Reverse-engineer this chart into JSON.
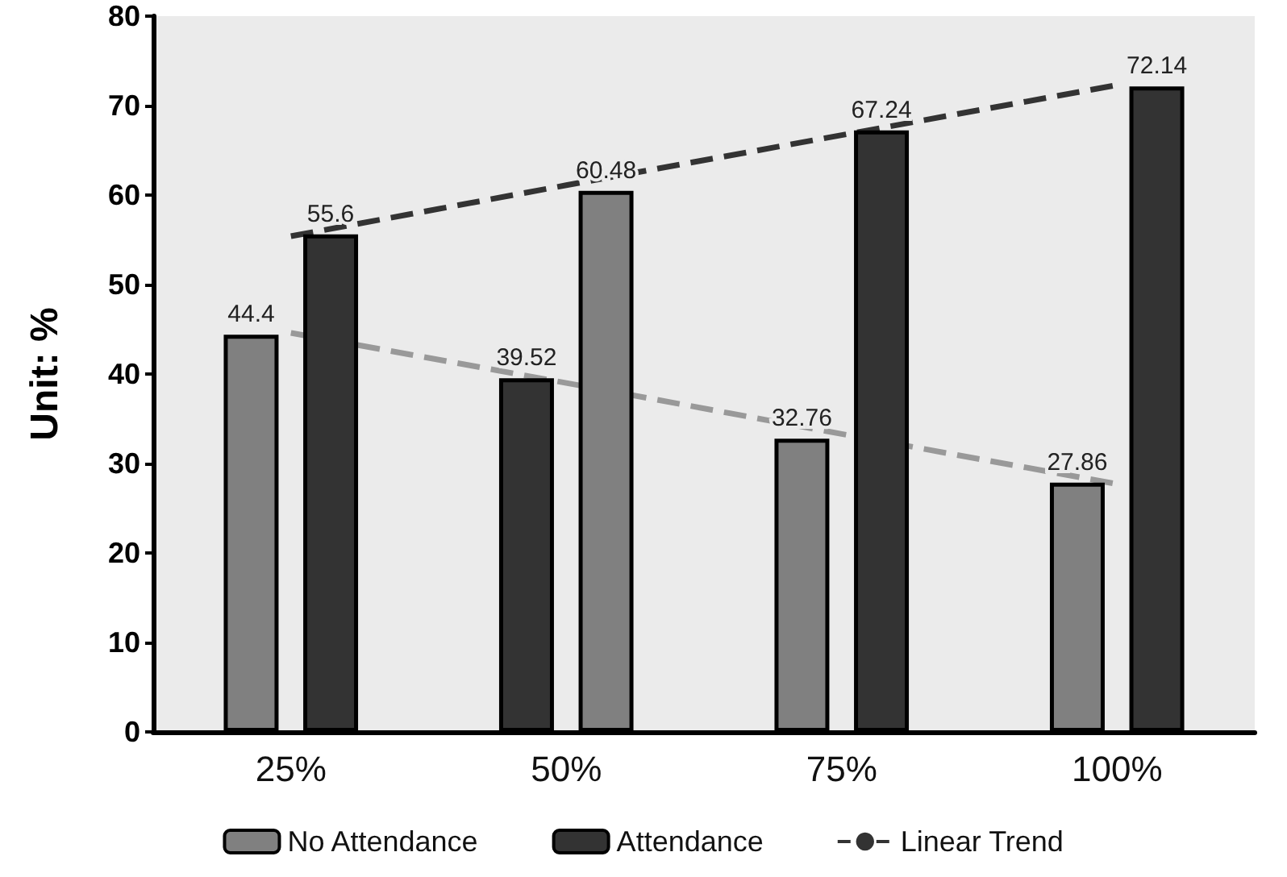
{
  "chart_data": {
    "type": "bar",
    "ylabel": "Unit: %",
    "categories": [
      "25%",
      "50%",
      "75%",
      "100%"
    ],
    "series": [
      {
        "name": "No Attendance",
        "color": "#808080",
        "colors": [
          "#808080",
          "#333333",
          "#808080",
          "#808080"
        ],
        "values": [
          44.4,
          39.52,
          32.76,
          27.86
        ],
        "value_labels": [
          "44.4",
          "39.52",
          "32.76",
          "27.86"
        ]
      },
      {
        "name": "Attendance",
        "color": "#333333",
        "colors": [
          "#333333",
          "#808080",
          "#333333",
          "#333333"
        ],
        "values": [
          55.6,
          60.48,
          67.24,
          72.14
        ],
        "value_labels": [
          "55.6",
          "60.48",
          "67.24",
          "72.14"
        ]
      },
      {
        "name": "Linear Trend",
        "type": "line",
        "color": "#333333",
        "line_style": "dashed",
        "marker": "none",
        "values": [
          55.4,
          61.1,
          66.7,
          72.3
        ]
      },
      {
        "type": "line",
        "color": "#999999",
        "line_style": "dashed",
        "marker": "none",
        "values": [
          44.6,
          39.0,
          33.3,
          27.7
        ]
      }
    ],
    "ylim": [
      0,
      80
    ],
    "yticks": [
      0,
      10,
      20,
      30,
      40,
      50,
      60,
      70,
      80
    ],
    "grid": false,
    "legend": "bottom"
  }
}
